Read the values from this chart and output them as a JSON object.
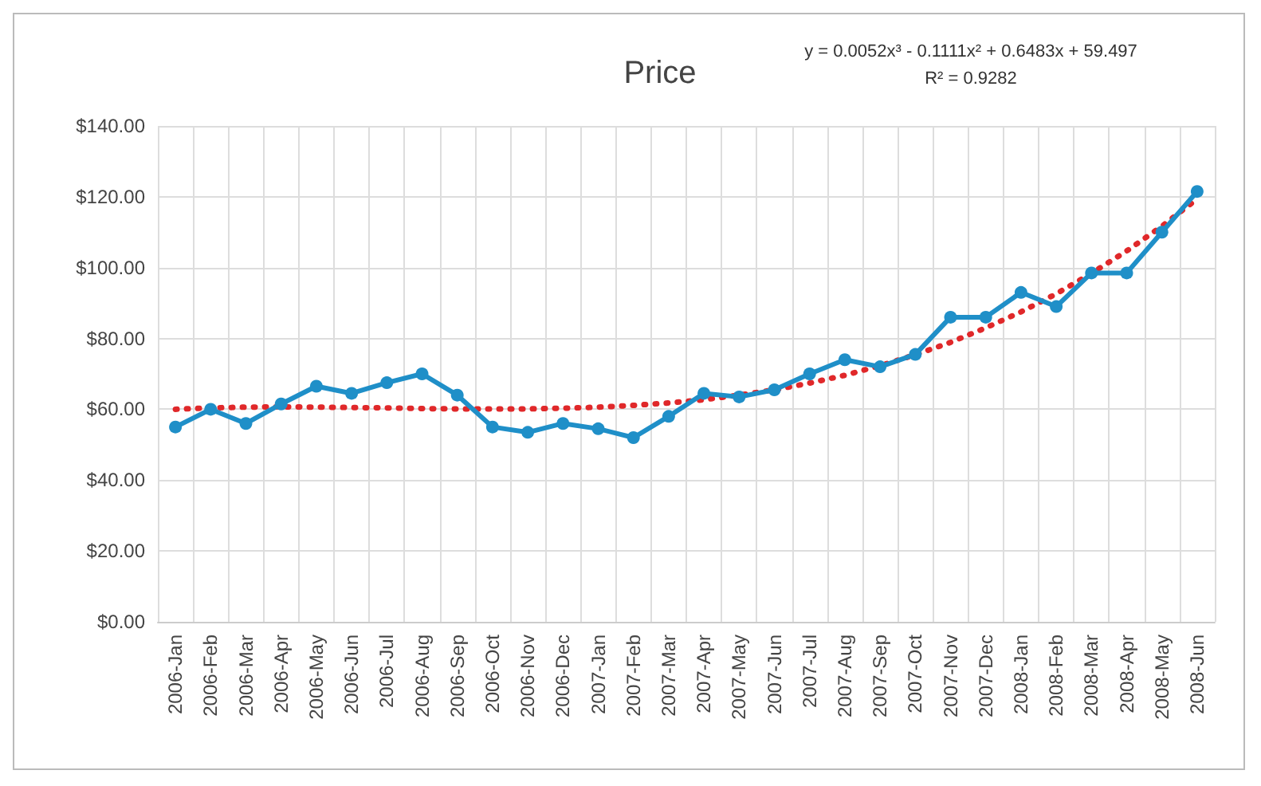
{
  "chart_data": {
    "type": "line",
    "title": "Price",
    "annotations": [
      "y = 0.0052x³ - 0.1111x² + 0.6483x + 59.497",
      "R² = 0.9282"
    ],
    "categories": [
      "2006-Jan",
      "2006-Feb",
      "2006-Mar",
      "2006-Apr",
      "2006-May",
      "2006-Jun",
      "2006-Jul",
      "2006-Aug",
      "2006-Sep",
      "2006-Oct",
      "2006-Nov",
      "2006-Dec",
      "2007-Jan",
      "2007-Feb",
      "2007-Mar",
      "2007-Apr",
      "2007-May",
      "2007-Jun",
      "2007-Jul",
      "2007-Aug",
      "2007-Sep",
      "2007-Oct",
      "2007-Nov",
      "2007-Dec",
      "2008-Jan",
      "2008-Feb",
      "2008-Mar",
      "2008-Apr",
      "2008-May",
      "2008-Jun"
    ],
    "series": [
      {
        "color": "#1f8fc8",
        "marker": "circle",
        "line_style": "solid",
        "values": [
          55,
          60,
          56,
          61.5,
          66.5,
          64.5,
          67.5,
          70,
          64,
          55,
          53.5,
          56,
          54.5,
          52,
          58,
          64.5,
          63.5,
          65.5,
          70,
          74,
          72,
          75.5,
          86,
          86,
          93,
          89,
          98.5,
          98.5,
          110,
          121.5
        ]
      },
      {
        "color": "#e0282a",
        "marker": "none",
        "line_style": "dotted",
        "values": [
          60.0,
          60.4,
          60.6,
          60.7,
          60.6,
          60.5,
          60.4,
          60.2,
          60.1,
          60.1,
          60.1,
          60.3,
          60.6,
          61.1,
          61.8,
          62.7,
          64.0,
          65.5,
          67.4,
          69.6,
          72.3,
          75.4,
          78.9,
          83.0,
          87.5,
          92.6,
          98.4,
          104.7,
          111.7,
          119.4
        ]
      }
    ],
    "ylim": [
      0,
      140
    ],
    "yticks": [
      {
        "value": 0,
        "label": "$0.00"
      },
      {
        "value": 20,
        "label": "$20.00"
      },
      {
        "value": 40,
        "label": "$40.00"
      },
      {
        "value": 60,
        "label": "$60.00"
      },
      {
        "value": 80,
        "label": "$80.00"
      },
      {
        "value": 100,
        "label": "$100.00"
      },
      {
        "value": 120,
        "label": "$120.00"
      },
      {
        "value": 140,
        "label": "$140.00"
      }
    ],
    "grid": true
  }
}
